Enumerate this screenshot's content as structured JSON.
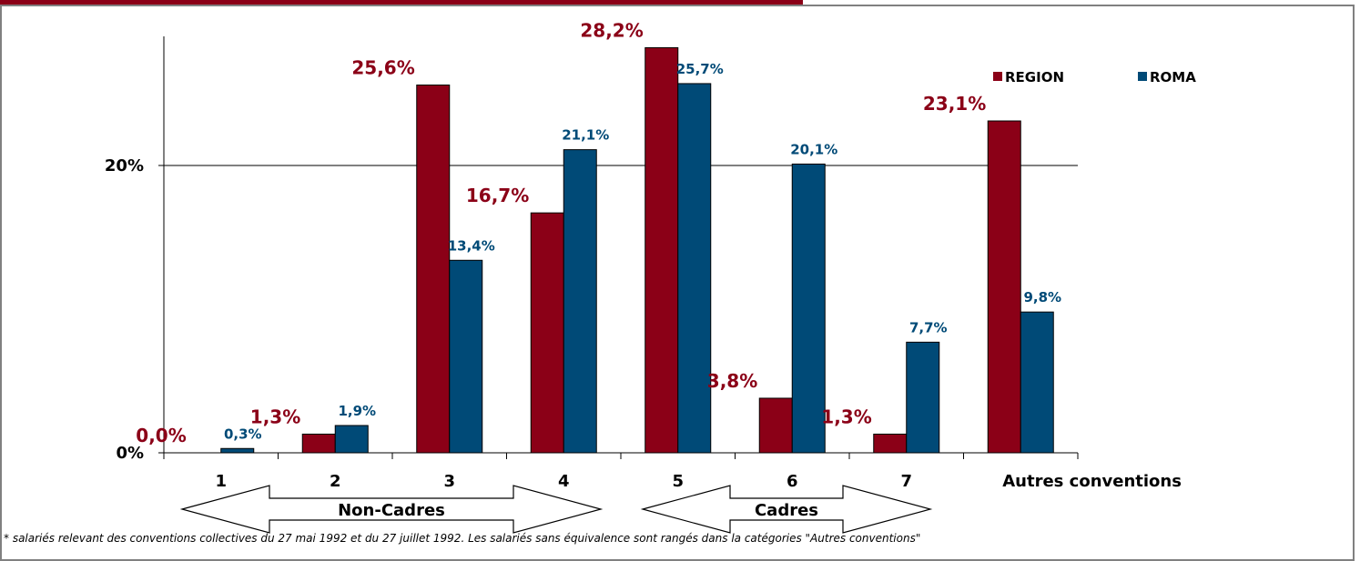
{
  "chart_data": {
    "type": "bar",
    "categories": [
      "1",
      "2",
      "3",
      "4",
      "5",
      "6",
      "7",
      "Autres conventions"
    ],
    "series": [
      {
        "name": "REGION",
        "color": "#8B0017",
        "values": [
          0.0,
          1.3,
          25.6,
          16.7,
          28.2,
          3.8,
          1.3,
          23.1
        ],
        "labels": [
          "0,0%",
          "1,3%",
          "25,6%",
          "16,7%",
          "28,2%",
          "3,8%",
          "1,3%",
          "23,1%"
        ]
      },
      {
        "name": "ROMA",
        "color": "#004A77",
        "values": [
          0.3,
          1.9,
          13.4,
          21.1,
          25.7,
          20.1,
          7.7,
          9.8
        ],
        "labels": [
          "0,3%",
          "1,9%",
          "13,4%",
          "21,1%",
          "25,7%",
          "20,1%",
          "7,7%",
          "9,8%"
        ]
      }
    ],
    "yticks": [
      {
        "value": 0,
        "label": "0%"
      },
      {
        "value": 20,
        "label": "20%"
      }
    ],
    "ylim": [
      0,
      30
    ],
    "grid": true,
    "legend_position": "top-right",
    "groups": [
      {
        "label": "Non-Cadres"
      },
      {
        "label": "Cadres"
      }
    ],
    "colors": {
      "header_bar": "#8B0017",
      "frame": "#808080"
    }
  },
  "footnote": "* salariés relevant des conventions collectives du 27 mai 1992 et du 27 juillet 1992. Les salariés sans équivalence sont rangés dans la catégories \"Autres conventions\""
}
